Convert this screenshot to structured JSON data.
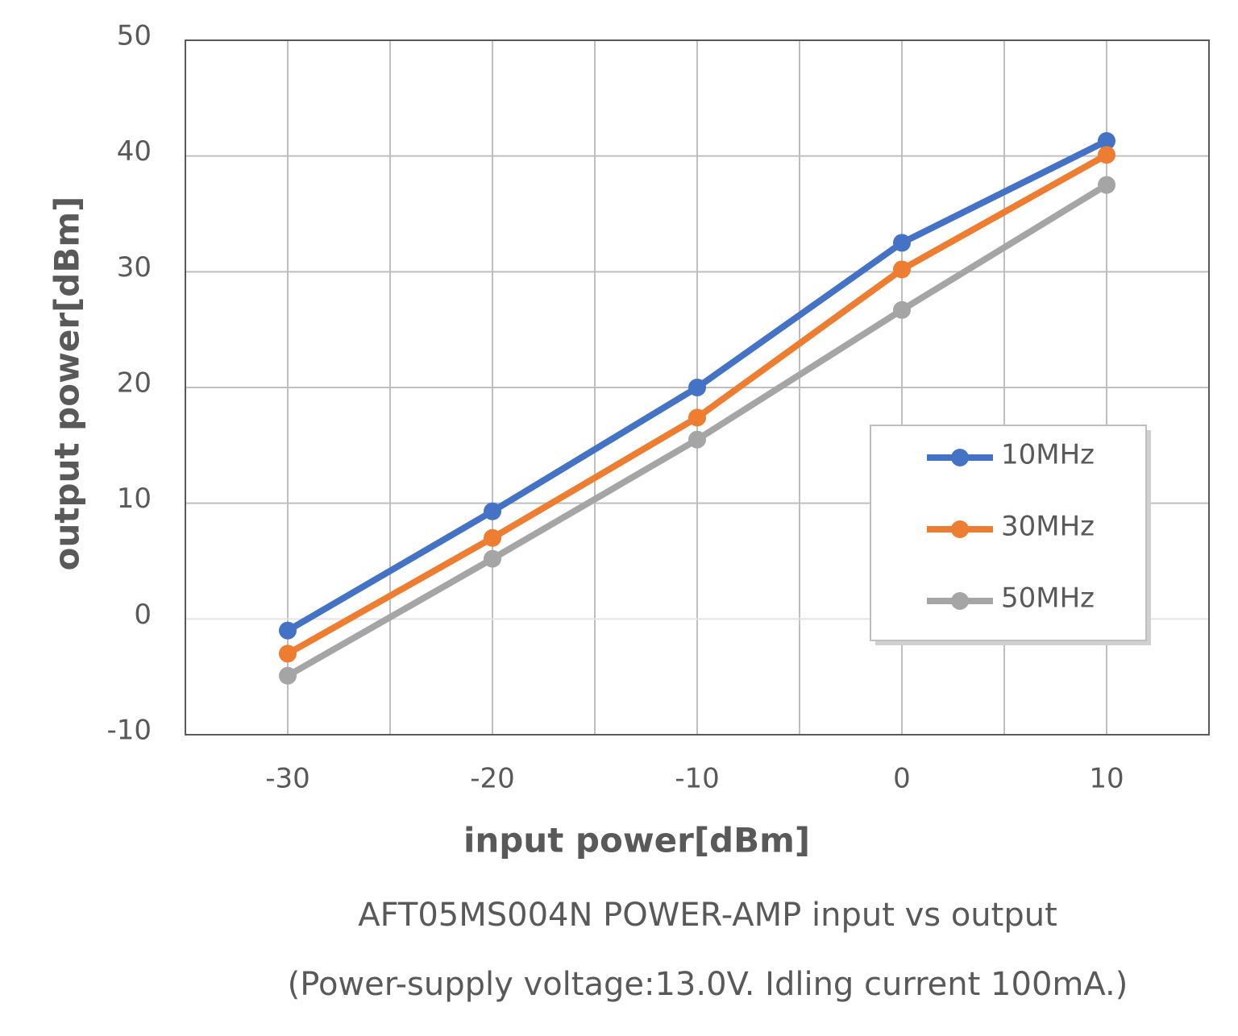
{
  "chart_data": {
    "type": "line",
    "x_label": "input power[dBm]",
    "y_label": "output power[dBm]",
    "title": "AFT05MS004N POWER-AMP input vs output",
    "subtitle": "(Power-supply voltage:13.0V. Idling current 100mA.)",
    "x": [
      -30,
      -20,
      -10,
      0,
      10
    ],
    "series": [
      {
        "name": "10MHz",
        "color": "#4472c4",
        "values": [
          -1.0,
          9.3,
          20.0,
          32.5,
          41.3
        ]
      },
      {
        "name": "30MHz",
        "color": "#ed7d31",
        "values": [
          -3.0,
          7.0,
          17.4,
          30.2,
          40.1
        ]
      },
      {
        "name": "50MHz",
        "color": "#a5a5a5",
        "values": [
          -4.9,
          5.2,
          15.5,
          26.7,
          37.5
        ]
      }
    ],
    "xlim": [
      -35,
      15
    ],
    "xticks": [
      -30,
      -20,
      -10,
      0,
      10
    ],
    "x_minor_ticks": [
      -25,
      -15,
      -5,
      5
    ],
    "ylim": [
      -10,
      50
    ],
    "yticks": [
      -10,
      0,
      10,
      20,
      30,
      40,
      50
    ],
    "grid": true,
    "legend": "right"
  }
}
